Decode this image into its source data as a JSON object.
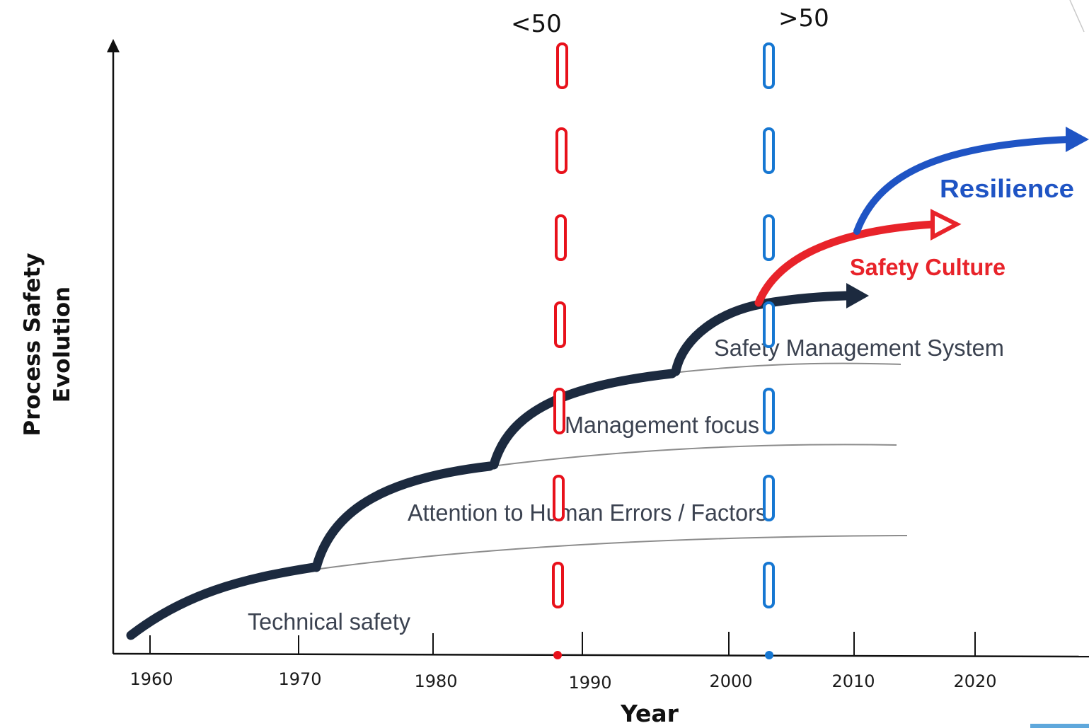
{
  "labels": {
    "ylabel_line1": "Process Safety",
    "ylabel_line2": "Evolution",
    "xlabel": "Year",
    "threshold_left": "<50",
    "threshold_right": ">50"
  },
  "ticks": [
    "1960",
    "1970",
    "1980",
    "1990",
    "2000",
    "2010",
    "2020"
  ],
  "stages": {
    "technical": "Technical safety",
    "human": "Attention to Human Errors / Factors",
    "management": "Management focus",
    "sms": "Safety Management System",
    "culture": "Safety Culture",
    "resilience": "Resilience"
  },
  "colors": {
    "stage_curve": "#1c2a3f",
    "culture": "#e8232a",
    "resilience": "#1f54c4",
    "left_dashes": "#e8111b",
    "right_dashes": "#1677d2",
    "baseline": "#8c8c8c"
  }
}
